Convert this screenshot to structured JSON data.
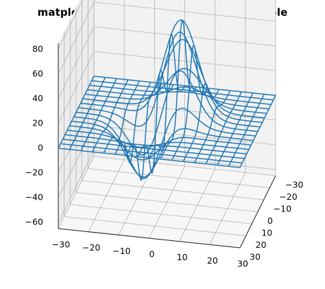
{
  "chart_data": {
    "type": "3d-wireframe",
    "title": "matplotlib.pyplot.draw() function Example",
    "xlabel": "",
    "ylabel": "",
    "zlabel": "",
    "xlim": [
      -30,
      30
    ],
    "ylim": [
      -30,
      30
    ],
    "zlim": [
      -65,
      85
    ],
    "x_ticks": [
      -30,
      -20,
      -10,
      0,
      10,
      20,
      30
    ],
    "y_ticks": [
      -30,
      -20,
      -10,
      0,
      10,
      20,
      30
    ],
    "z_ticks": [
      -60,
      -40,
      -20,
      0,
      20,
      40,
      60,
      80
    ],
    "x_tick_labels": [
      "−30",
      "−20",
      "−10",
      "0",
      "10",
      "20",
      "30"
    ],
    "y_tick_labels": [
      "−30",
      "−20",
      "−10",
      "0",
      "10",
      "20",
      "30"
    ],
    "z_tick_labels": [
      "−60",
      "−40",
      "−20",
      "0",
      "20",
      "40",
      "60",
      "80"
    ],
    "grid": true,
    "line_color": "#1f77b4",
    "surface_description": "wireframe of a surface that is flat (z≈0) near edges, with a large peak (~80) near x≈0..10, y≈-5 and a deep trough (~-50) near x≈-5, y≈5",
    "peak": {
      "x": 3,
      "y": -6,
      "z": 80
    },
    "trough": {
      "x": -6,
      "y": 4,
      "z": -50
    }
  }
}
